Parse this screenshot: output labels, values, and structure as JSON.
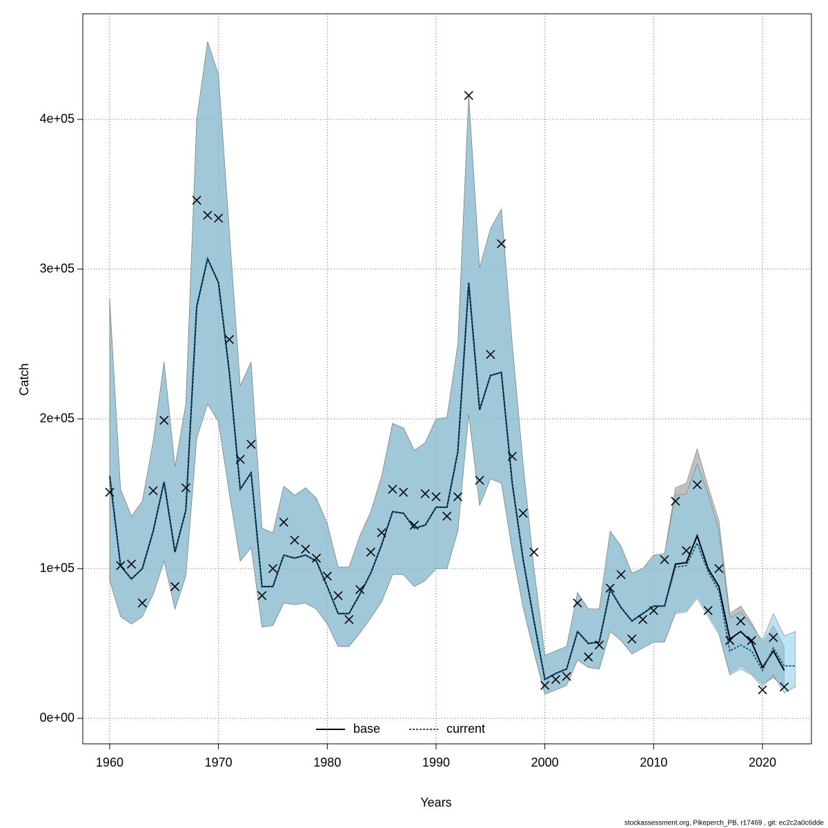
{
  "chart_data": {
    "type": "line",
    "y_label": "Catch",
    "x_label": "Years",
    "footnote": "stockassessment.org, Pikeperch_PB, r17469 , git: ec2c2a0c6dde",
    "x": [
      1960,
      1961,
      1962,
      1963,
      1964,
      1965,
      1966,
      1967,
      1968,
      1969,
      1970,
      1971,
      1972,
      1973,
      1974,
      1975,
      1976,
      1977,
      1978,
      1979,
      1980,
      1981,
      1982,
      1983,
      1984,
      1985,
      1986,
      1987,
      1988,
      1989,
      1990,
      1991,
      1992,
      1993,
      1994,
      1995,
      1996,
      1997,
      1998,
      1999,
      2000,
      2001,
      2002,
      2003,
      2004,
      2005,
      2006,
      2007,
      2008,
      2009,
      2010,
      2011,
      2012,
      2013,
      2014,
      2015,
      2016,
      2017,
      2018,
      2019,
      2020,
      2021,
      2022,
      2023
    ],
    "observed": {
      "marker": "x",
      "color": "#000000",
      "values": [
        151000,
        102000,
        103000,
        77000,
        152000,
        199000,
        88000,
        154000,
        346000,
        336000,
        334000,
        253000,
        173000,
        183000,
        82000,
        100000,
        131000,
        119000,
        113000,
        107000,
        95000,
        82000,
        66000,
        86000,
        111000,
        124000,
        153000,
        151000,
        129000,
        150000,
        148000,
        135000,
        148000,
        416000,
        159000,
        243000,
        317000,
        175000,
        137000,
        111000,
        22000,
        26000,
        28000,
        77000,
        41000,
        49000,
        87000,
        96000,
        53000,
        66000,
        72000,
        106000,
        145000,
        112000,
        156000,
        72000,
        100000,
        52000,
        65000,
        52000,
        19000,
        54000,
        21000,
        null
      ]
    },
    "series": [
      {
        "name": "base",
        "color": "#000000",
        "band_color": "#8c8c8c",
        "dash": false,
        "values": [
          162000,
          102000,
          93000,
          100000,
          125000,
          158000,
          111000,
          139000,
          275000,
          307000,
          291000,
          231000,
          153000,
          164000,
          88000,
          88000,
          109000,
          107000,
          109000,
          105000,
          88000,
          70000,
          70000,
          83000,
          97000,
          116000,
          138000,
          137000,
          127000,
          129000,
          141000,
          141000,
          178000,
          291000,
          206000,
          229000,
          231000,
          157000,
          106000,
          65000,
          26000,
          30000,
          33000,
          58000,
          50000,
          51000,
          86000,
          74000,
          65000,
          70000,
          75000,
          75000,
          103000,
          104000,
          122000,
          100000,
          88000,
          53000,
          58000,
          51000,
          34000,
          45000,
          32000,
          null
        ],
        "lower": [
          92000,
          68000,
          63000,
          68000,
          83000,
          105000,
          73000,
          95000,
          187000,
          210000,
          198000,
          150000,
          105000,
          114000,
          61000,
          62000,
          77000,
          76000,
          77000,
          73000,
          63000,
          48000,
          48000,
          57000,
          67000,
          78000,
          96000,
          96000,
          88000,
          92000,
          100000,
          100000,
          125000,
          203000,
          142000,
          160000,
          157000,
          112000,
          74000,
          44000,
          16000,
          19000,
          22000,
          39000,
          34000,
          33000,
          58000,
          52000,
          43000,
          47000,
          51000,
          51000,
          71000,
          72000,
          82000,
          70000,
          58000,
          30000,
          35000,
          30000,
          23000,
          27000,
          21000,
          null
        ],
        "upper": [
          280000,
          153000,
          135000,
          145000,
          185000,
          238000,
          168000,
          210000,
          400000,
          452000,
          430000,
          325000,
          222000,
          238000,
          127000,
          124000,
          155000,
          149000,
          154000,
          147000,
          130000,
          101000,
          101000,
          122000,
          138000,
          162000,
          197000,
          194000,
          179000,
          184000,
          200000,
          201000,
          250000,
          416000,
          301000,
          327000,
          340000,
          250000,
          170000,
          100000,
          42000,
          45000,
          48000,
          84000,
          73000,
          73000,
          125000,
          115000,
          97000,
          100000,
          109000,
          110000,
          154000,
          157000,
          180000,
          155000,
          132000,
          70000,
          75000,
          64000,
          50000,
          62000,
          48000,
          null
        ]
      },
      {
        "name": "current",
        "color": "#0b5d8c",
        "band_color": "#87ceeb",
        "dash": true,
        "values": [
          162000,
          102000,
          93000,
          100000,
          125000,
          158000,
          111000,
          139000,
          275000,
          307000,
          291000,
          231000,
          153000,
          164000,
          88000,
          88000,
          109000,
          107000,
          109000,
          105000,
          88000,
          70000,
          70000,
          83000,
          97000,
          116000,
          138000,
          137000,
          127000,
          129000,
          141000,
          141000,
          178000,
          291000,
          206000,
          229000,
          231000,
          157000,
          106000,
          65000,
          26000,
          30000,
          33000,
          58000,
          50000,
          51000,
          86000,
          74000,
          65000,
          70000,
          75000,
          75000,
          101000,
          102000,
          117000,
          98000,
          85000,
          45000,
          49000,
          45000,
          32000,
          47000,
          35000,
          35000
        ],
        "lower": [
          92000,
          68000,
          63000,
          68000,
          83000,
          105000,
          73000,
          95000,
          187000,
          210000,
          198000,
          150000,
          105000,
          114000,
          61000,
          62000,
          77000,
          76000,
          77000,
          73000,
          63000,
          48000,
          48000,
          57000,
          67000,
          78000,
          96000,
          96000,
          88000,
          92000,
          100000,
          100000,
          125000,
          203000,
          142000,
          160000,
          157000,
          112000,
          74000,
          44000,
          16000,
          19000,
          22000,
          39000,
          34000,
          33000,
          58000,
          52000,
          43000,
          47000,
          51000,
          51000,
          70000,
          71000,
          80000,
          68000,
          56000,
          29000,
          33000,
          29000,
          21000,
          29000,
          17000,
          21000
        ],
        "upper": [
          280000,
          153000,
          135000,
          145000,
          185000,
          238000,
          168000,
          210000,
          400000,
          452000,
          430000,
          325000,
          222000,
          238000,
          127000,
          124000,
          155000,
          149000,
          154000,
          147000,
          130000,
          101000,
          101000,
          122000,
          138000,
          162000,
          197000,
          194000,
          179000,
          184000,
          200000,
          201000,
          250000,
          416000,
          301000,
          327000,
          340000,
          250000,
          170000,
          100000,
          42000,
          45000,
          48000,
          84000,
          73000,
          73000,
          125000,
          115000,
          97000,
          100000,
          109000,
          110000,
          149000,
          150000,
          170000,
          150000,
          125000,
          67000,
          71000,
          62000,
          52000,
          70000,
          55000,
          58000
        ]
      }
    ],
    "xlim": [
      1957.53,
      2024.5
    ],
    "xticks": [
      1960,
      1970,
      1980,
      1990,
      2000,
      2010,
      2020
    ],
    "ylim": [
      -17000,
      470500
    ],
    "yticks": [
      {
        "value": 0,
        "label": "0e+00"
      },
      {
        "value": 100000,
        "label": "1e+05"
      },
      {
        "value": 200000,
        "label": "2e+05"
      },
      {
        "value": 300000,
        "label": "3e+05"
      },
      {
        "value": 400000,
        "label": "4e+05"
      }
    ],
    "grid": true,
    "legend": "bottom"
  }
}
